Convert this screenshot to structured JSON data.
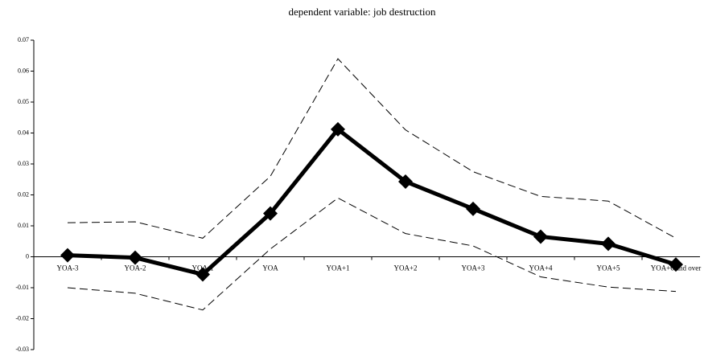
{
  "chart_data": {
    "type": "line",
    "title": "dependent variable: job destruction",
    "categories": [
      "YOA-3",
      "YOA-2",
      "YOA-1",
      "YOA",
      "YOA+1",
      "YOA+2",
      "YOA+3",
      "YOA+4",
      "YOA+5",
      "YOA+6 and over"
    ],
    "series": [
      {
        "color": "#000000",
        "style": "solid",
        "markers": true,
        "values": [
          0.0005,
          -0.0003,
          -0.0057,
          0.014,
          0.0412,
          0.0243,
          0.0155,
          0.0065,
          0.0042,
          -0.0025
        ]
      },
      {
        "color": "#000000",
        "style": "dashed",
        "markers": false,
        "values": [
          0.011,
          0.0113,
          0.006,
          0.026,
          0.064,
          0.041,
          0.0275,
          0.0195,
          0.018,
          0.006
        ]
      },
      {
        "color": "#000000",
        "style": "dashed",
        "markers": false,
        "values": [
          -0.01,
          -0.0118,
          -0.0172,
          0.0025,
          0.019,
          0.0075,
          0.0035,
          -0.0065,
          -0.0098,
          -0.0112
        ]
      }
    ],
    "ylim": [
      -0.03,
      0.07
    ],
    "yticks": [
      -0.03,
      -0.02,
      -0.01,
      0,
      0.01,
      0.02,
      0.03,
      0.04,
      0.05,
      0.06,
      0.07
    ],
    "grid": false
  }
}
